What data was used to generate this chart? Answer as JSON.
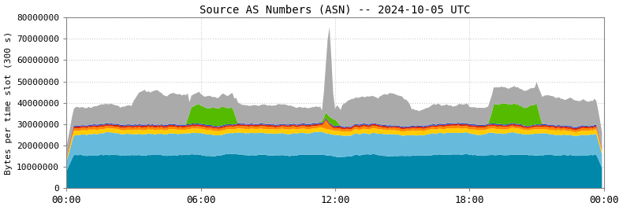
{
  "title": "Source AS Numbers (ASN) -- 2024-10-05 UTC",
  "ylabel": "Bytes per time slot (300 s)",
  "xlim": [
    0,
    288
  ],
  "ylim": [
    0,
    80000000
  ],
  "yticks": [
    0,
    10000000,
    20000000,
    30000000,
    40000000,
    50000000,
    60000000,
    70000000,
    80000000
  ],
  "xticks": [
    0,
    72,
    144,
    216,
    288
  ],
  "xticklabels": [
    "00:00",
    "06:00",
    "12:00",
    "18:00",
    "00:00"
  ],
  "colors": {
    "teal": "#0088aa",
    "light_blue": "#66bbdd",
    "yellow": "#ffcc00",
    "orange": "#ff8800",
    "red": "#dd2200",
    "green": "#55bb00",
    "blue": "#2244cc",
    "gray": "#aaaaaa"
  },
  "grid_color": "#cccccc",
  "background": "#ffffff",
  "n_points": 288
}
